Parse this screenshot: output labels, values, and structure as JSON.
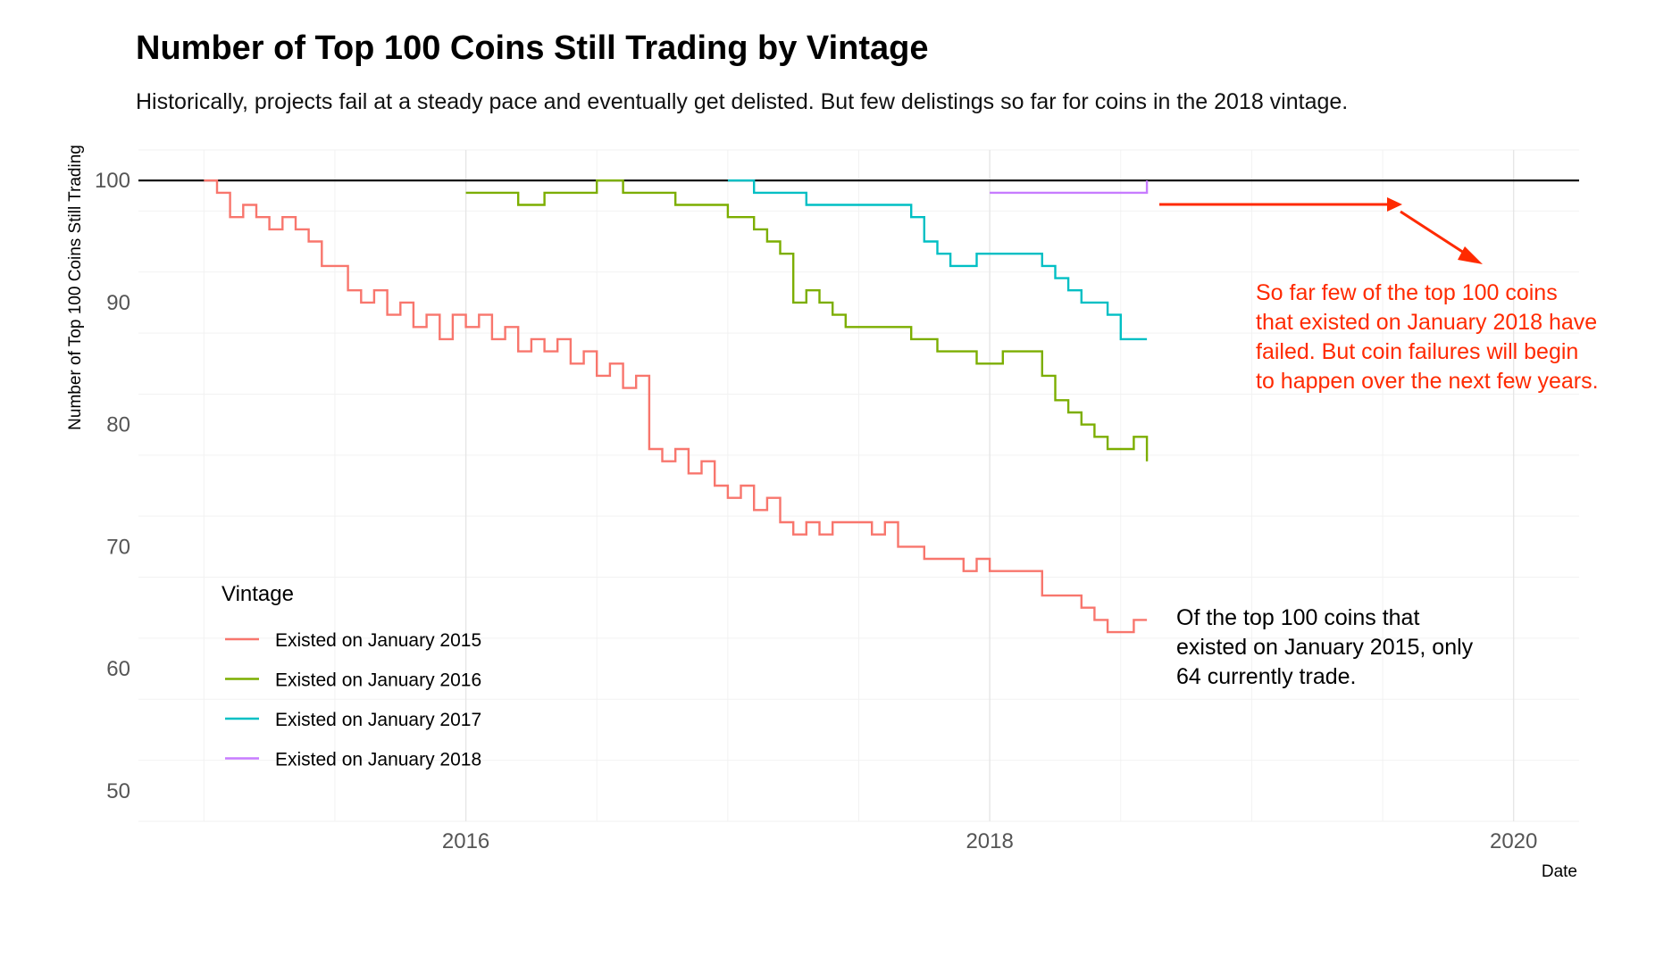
{
  "chart_data": {
    "type": "line",
    "title": "Number of Top 100 Coins Still Trading by Vintage",
    "subtitle": "Historically, projects fail at a steady pace and eventually get delisted. But few delistings so far for coins in the 2018 vintage.",
    "xlabel": "Date",
    "ylabel": "Number of Top 100 Coins Still Trading",
    "xlim": [
      2014.75,
      2020.25
    ],
    "ylim": [
      47.5,
      102.5
    ],
    "x_ticks": [
      2016,
      2018,
      2020
    ],
    "x_tick_labels": [
      "2016",
      "2018",
      "2020"
    ],
    "y_ticks": [
      50,
      60,
      70,
      80,
      90,
      100
    ],
    "y_tick_labels": [
      "50",
      "60",
      "70",
      "80",
      "90",
      "100"
    ],
    "grid": true,
    "reference_line": {
      "y": 100,
      "color": "#000000"
    },
    "legend": {
      "title": "Vintage",
      "placement": "bottom-left inside"
    },
    "series": [
      {
        "name": "Existed on January 2015",
        "color": "#F8766D",
        "x": [
          2015.0,
          2015.05,
          2015.1,
          2015.15,
          2015.2,
          2015.25,
          2015.3,
          2015.35,
          2015.4,
          2015.45,
          2015.5,
          2015.55,
          2015.6,
          2015.65,
          2015.7,
          2015.75,
          2015.8,
          2015.85,
          2015.9,
          2015.95,
          2016.0,
          2016.05,
          2016.1,
          2016.15,
          2016.2,
          2016.25,
          2016.3,
          2016.35,
          2016.4,
          2016.45,
          2016.5,
          2016.55,
          2016.6,
          2016.65,
          2016.7,
          2016.75,
          2016.8,
          2016.85,
          2016.9,
          2016.95,
          2017.0,
          2017.05,
          2017.1,
          2017.15,
          2017.2,
          2017.25,
          2017.3,
          2017.35,
          2017.4,
          2017.45,
          2017.5,
          2017.55,
          2017.6,
          2017.65,
          2017.7,
          2017.75,
          2017.8,
          2017.85,
          2017.9,
          2017.95,
          2018.0,
          2018.05,
          2018.1,
          2018.15,
          2018.2,
          2018.25,
          2018.3,
          2018.35,
          2018.4,
          2018.45,
          2018.5,
          2018.55,
          2018.6
        ],
        "values": [
          100,
          99,
          97,
          98,
          97,
          96,
          97,
          96,
          95,
          93,
          93,
          91,
          90,
          91,
          89,
          90,
          88,
          89,
          87,
          89,
          88,
          89,
          87,
          88,
          86,
          87,
          86,
          87,
          85,
          86,
          84,
          85,
          83,
          84,
          78,
          77,
          78,
          76,
          77,
          75,
          74,
          75,
          73,
          74,
          72,
          71,
          72,
          71,
          72,
          72,
          72,
          71,
          72,
          70,
          70,
          69,
          69,
          69,
          68,
          69,
          68,
          68,
          68,
          68,
          66,
          66,
          66,
          65,
          64,
          63,
          63,
          64,
          64
        ]
      },
      {
        "name": "Existed on January 2016",
        "color": "#7CAE00",
        "x": [
          2016.0,
          2016.1,
          2016.2,
          2016.3,
          2016.4,
          2016.5,
          2016.6,
          2016.7,
          2016.8,
          2016.9,
          2017.0,
          2017.05,
          2017.1,
          2017.15,
          2017.2,
          2017.25,
          2017.3,
          2017.35,
          2017.4,
          2017.45,
          2017.5,
          2017.55,
          2017.6,
          2017.65,
          2017.7,
          2017.75,
          2017.8,
          2017.85,
          2017.9,
          2017.95,
          2018.0,
          2018.05,
          2018.1,
          2018.15,
          2018.2,
          2018.25,
          2018.3,
          2018.35,
          2018.4,
          2018.45,
          2018.5,
          2018.55,
          2018.6
        ],
        "values": [
          99,
          99,
          98,
          99,
          99,
          100,
          99,
          99,
          98,
          98,
          97,
          97,
          96,
          95,
          94,
          90,
          91,
          90,
          89,
          88,
          88,
          88,
          88,
          88,
          87,
          87,
          86,
          86,
          86,
          85,
          85,
          86,
          86,
          86,
          84,
          82,
          81,
          80,
          79,
          78,
          78,
          79,
          77
        ]
      },
      {
        "name": "Existed on January 2017",
        "color": "#00BFC4",
        "x": [
          2017.0,
          2017.1,
          2017.2,
          2017.3,
          2017.4,
          2017.5,
          2017.6,
          2017.7,
          2017.75,
          2017.8,
          2017.85,
          2017.9,
          2017.95,
          2018.0,
          2018.05,
          2018.1,
          2018.15,
          2018.2,
          2018.25,
          2018.3,
          2018.35,
          2018.4,
          2018.45,
          2018.5,
          2018.55,
          2018.6
        ],
        "values": [
          100,
          99,
          99,
          98,
          98,
          98,
          98,
          97,
          95,
          94,
          93,
          93,
          94,
          94,
          94,
          94,
          94,
          93,
          92,
          91,
          90,
          90,
          89,
          87,
          87,
          87
        ]
      },
      {
        "name": "Existed on January 2018",
        "color": "#C77CFF",
        "x": [
          2018.0,
          2018.05,
          2018.1,
          2018.15,
          2018.2,
          2018.25,
          2018.3,
          2018.35,
          2018.4,
          2018.45,
          2018.5,
          2018.55,
          2018.6
        ],
        "values": [
          99,
          99,
          99,
          99,
          99,
          99,
          99,
          99,
          99,
          99,
          99,
          99,
          100
        ]
      }
    ],
    "annotations": [
      {
        "text_lines": [
          "So far few of the top 100 coins",
          "that existed on January 2018 have",
          "failed. But coin failures will begin",
          "to happen over the next few years."
        ],
        "color": "#FF2A00"
      },
      {
        "text_lines": [
          "Of the top 100 coins that",
          "existed on January 2015, only",
          "64 currently trade."
        ],
        "color": "#000000"
      }
    ]
  }
}
